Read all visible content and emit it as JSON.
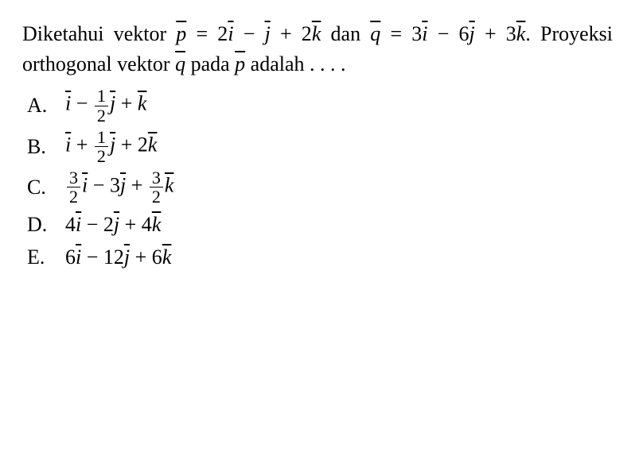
{
  "text_color": "#000000",
  "background_color": "#ffffff",
  "font_family": "Times New Roman",
  "base_fontsize_pt": 20,
  "question": {
    "t1": "Diketahui vektor ",
    "p": "p",
    "eq": " = 2",
    "i1": "i",
    "minus1": " − ",
    "j1": "j",
    "plus1": " + 2",
    "k1": "k",
    "dan": " dan",
    "q": "q",
    "eq2": " = 3",
    "i2": "i",
    "minus2": " − 6",
    "j2": "j",
    "plus2": " + 3",
    "k2": "k",
    "t2": ". Proyeksi orthogonal vektor",
    "q2": "q",
    "pada": " pada ",
    "p2": "p",
    "adalah": " adalah . . . ."
  },
  "options": {
    "A": {
      "letter": "A.",
      "i": "i",
      "s1": " − ",
      "f1n": "1",
      "f1d": "2",
      "j": "j",
      "s2": " + ",
      "k": "k"
    },
    "B": {
      "letter": "B.",
      "i": "i",
      "s1": " + ",
      "f1n": "1",
      "f1d": "2",
      "j": "j",
      "s2": " + 2",
      "k": "k"
    },
    "C": {
      "letter": "C.",
      "f1n": "3",
      "f1d": "2",
      "i": "i",
      "s1": " − 3",
      "j": "j",
      "s2": " + ",
      "f2n": "3",
      "f2d": "2",
      "k": "k"
    },
    "D": {
      "letter": "D.",
      "c1": "4",
      "i": "i",
      "s1": " − 2",
      "j": "j",
      "s2": " + 4",
      "k": "k"
    },
    "E": {
      "letter": "E.",
      "c1": "6",
      "i": "i",
      "s1": " − 12",
      "j": "j",
      "s2": " + 6",
      "k": "k"
    }
  }
}
